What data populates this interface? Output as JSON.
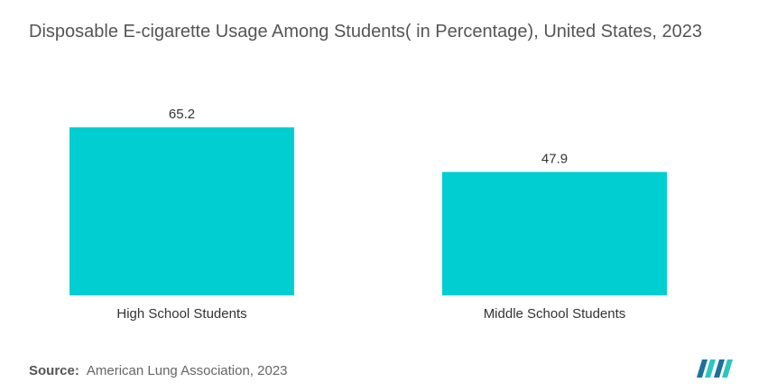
{
  "chart_data": {
    "type": "bar",
    "title": "Disposable E-cigarette Usage Among Students( in Percentage), United States, 2023",
    "categories": [
      "High School Students",
      "Middle School Students"
    ],
    "values": [
      65.2,
      47.9
    ],
    "value_labels": [
      "65.2",
      "47.9"
    ],
    "xlabel": "",
    "ylabel": "",
    "ylim": [
      0,
      65.2
    ],
    "grid": false,
    "bar_color": "#00CED1"
  },
  "source": {
    "label": "Source:",
    "text": "American Lung Association, 2023"
  },
  "logo": {
    "icon": "mordor-intelligence-logo",
    "colors": [
      "#1e6fa0",
      "#2ec4c6"
    ]
  }
}
